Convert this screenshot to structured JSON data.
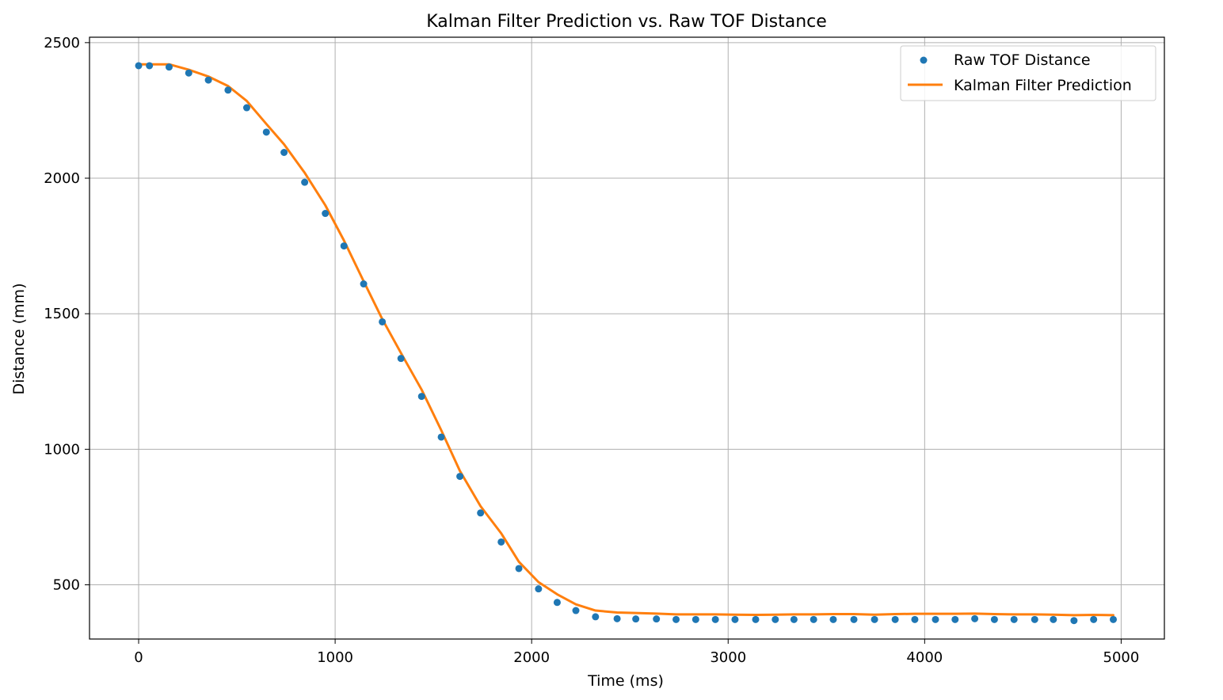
{
  "chart_data": {
    "type": "line",
    "title": "Kalman Filter Prediction vs. Raw TOF Distance",
    "xlabel": "Time (ms)",
    "ylabel": "Distance (mm)",
    "xlim": [
      -250,
      5220
    ],
    "ylim": [
      300,
      2520
    ],
    "xticks": [
      0,
      1000,
      2000,
      3000,
      4000,
      5000
    ],
    "yticks": [
      500,
      1000,
      1500,
      2000,
      2500
    ],
    "grid": true,
    "legend_position": "top-right",
    "colors": {
      "raw": "#1f77b4",
      "kalman": "#ff7f0e"
    },
    "series": [
      {
        "name": "Raw TOF Distance",
        "kind": "scatter",
        "points": [
          [
            0,
            2415
          ],
          [
            55,
            2415
          ],
          [
            155,
            2410
          ],
          [
            255,
            2388
          ],
          [
            355,
            2362
          ],
          [
            455,
            2325
          ],
          [
            550,
            2260
          ],
          [
            650,
            2170
          ],
          [
            740,
            2095
          ],
          [
            845,
            1985
          ],
          [
            950,
            1870
          ],
          [
            1045,
            1750
          ],
          [
            1145,
            1610
          ],
          [
            1240,
            1470
          ],
          [
            1335,
            1335
          ],
          [
            1440,
            1195
          ],
          [
            1540,
            1045
          ],
          [
            1635,
            900
          ],
          [
            1740,
            765
          ],
          [
            1845,
            658
          ],
          [
            1935,
            560
          ],
          [
            2035,
            485
          ],
          [
            2130,
            435
          ],
          [
            2225,
            405
          ],
          [
            2325,
            382
          ],
          [
            2435,
            375
          ],
          [
            2530,
            374
          ],
          [
            2635,
            374
          ],
          [
            2735,
            372
          ],
          [
            2835,
            372
          ],
          [
            2935,
            372
          ],
          [
            3035,
            372
          ],
          [
            3140,
            372
          ],
          [
            3240,
            372
          ],
          [
            3335,
            372
          ],
          [
            3435,
            372
          ],
          [
            3535,
            372
          ],
          [
            3640,
            372
          ],
          [
            3745,
            372
          ],
          [
            3850,
            372
          ],
          [
            3950,
            372
          ],
          [
            4055,
            372
          ],
          [
            4155,
            372
          ],
          [
            4255,
            375
          ],
          [
            4355,
            372
          ],
          [
            4455,
            372
          ],
          [
            4560,
            372
          ],
          [
            4655,
            372
          ],
          [
            4760,
            368
          ],
          [
            4860,
            372
          ],
          [
            4960,
            372
          ]
        ]
      },
      {
        "name": "Kalman Filter Prediction",
        "kind": "line",
        "points": [
          [
            0,
            2420
          ],
          [
            155,
            2420
          ],
          [
            255,
            2400
          ],
          [
            355,
            2375
          ],
          [
            455,
            2340
          ],
          [
            550,
            2285
          ],
          [
            650,
            2200
          ],
          [
            740,
            2125
          ],
          [
            845,
            2020
          ],
          [
            950,
            1900
          ],
          [
            1045,
            1770
          ],
          [
            1145,
            1620
          ],
          [
            1240,
            1480
          ],
          [
            1335,
            1355
          ],
          [
            1440,
            1220
          ],
          [
            1540,
            1070
          ],
          [
            1635,
            920
          ],
          [
            1740,
            790
          ],
          [
            1845,
            690
          ],
          [
            1935,
            585
          ],
          [
            2035,
            510
          ],
          [
            2130,
            465
          ],
          [
            2225,
            428
          ],
          [
            2325,
            405
          ],
          [
            2435,
            398
          ],
          [
            2530,
            396
          ],
          [
            2635,
            394
          ],
          [
            2735,
            391
          ],
          [
            2835,
            391
          ],
          [
            2935,
            391
          ],
          [
            3035,
            390
          ],
          [
            3140,
            389
          ],
          [
            3240,
            390
          ],
          [
            3335,
            391
          ],
          [
            3435,
            391
          ],
          [
            3535,
            392
          ],
          [
            3640,
            392
          ],
          [
            3745,
            390
          ],
          [
            3850,
            392
          ],
          [
            3950,
            393
          ],
          [
            4055,
            393
          ],
          [
            4155,
            393
          ],
          [
            4255,
            394
          ],
          [
            4355,
            392
          ],
          [
            4455,
            391
          ],
          [
            4560,
            391
          ],
          [
            4655,
            390
          ],
          [
            4760,
            388
          ],
          [
            4860,
            389
          ],
          [
            4960,
            388
          ]
        ]
      }
    ]
  }
}
